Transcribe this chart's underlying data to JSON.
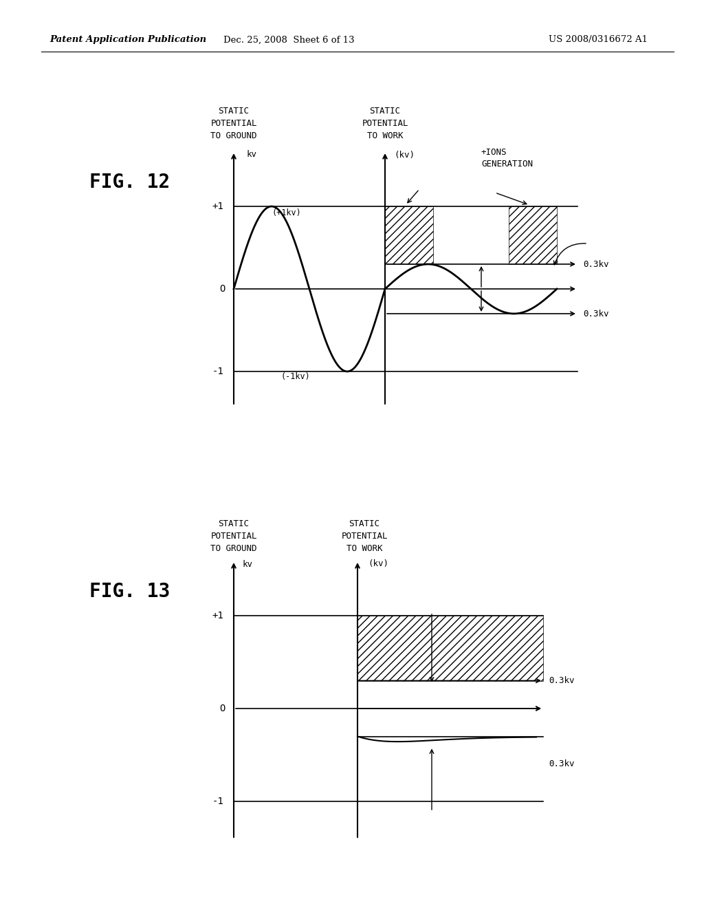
{
  "header_left": "Patent Application Publication",
  "header_mid": "Dec. 25, 2008  Sheet 6 of 13",
  "header_right": "US 2008/0316672 A1",
  "fig12_label": "FIG. 12",
  "fig13_label": "FIG. 13",
  "bg_color": "#ffffff"
}
